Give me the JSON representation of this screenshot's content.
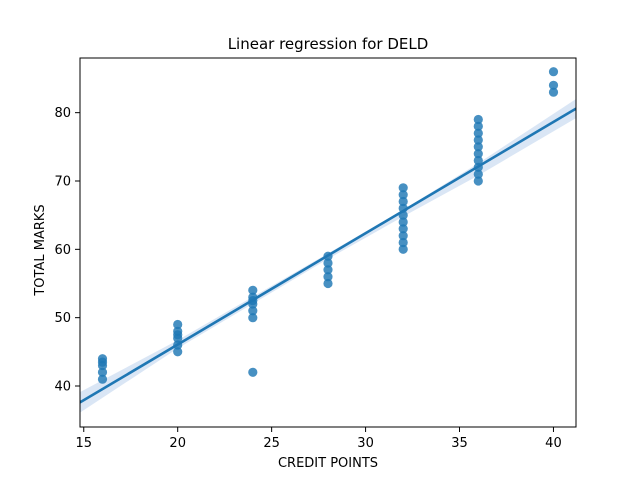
{
  "chart_data": {
    "type": "scatter",
    "title": "Linear regression for DELD",
    "xlabel": "CREDIT POINTS",
    "ylabel": "TOTAL MARKS",
    "xlim": [
      14.8,
      41.2
    ],
    "ylim": [
      34,
      88
    ],
    "xticks": [
      15,
      20,
      25,
      30,
      35,
      40
    ],
    "yticks": [
      40,
      50,
      60,
      70,
      80
    ],
    "grid": false,
    "point_color": "#1f77b4",
    "line_color": "#1f77b4",
    "band_color": "#aec7e8",
    "points": [
      {
        "x": 16,
        "y": 41
      },
      {
        "x": 16,
        "y": 42
      },
      {
        "x": 16,
        "y": 43
      },
      {
        "x": 16,
        "y": 43.5
      },
      {
        "x": 16,
        "y": 44
      },
      {
        "x": 20,
        "y": 45
      },
      {
        "x": 20,
        "y": 46
      },
      {
        "x": 20,
        "y": 47
      },
      {
        "x": 20,
        "y": 47.5
      },
      {
        "x": 20,
        "y": 48
      },
      {
        "x": 20,
        "y": 49
      },
      {
        "x": 24,
        "y": 42
      },
      {
        "x": 24,
        "y": 50
      },
      {
        "x": 24,
        "y": 51
      },
      {
        "x": 24,
        "y": 52
      },
      {
        "x": 24,
        "y": 52.5
      },
      {
        "x": 24,
        "y": 53
      },
      {
        "x": 24,
        "y": 54
      },
      {
        "x": 28,
        "y": 55
      },
      {
        "x": 28,
        "y": 56
      },
      {
        "x": 28,
        "y": 57
      },
      {
        "x": 28,
        "y": 58
      },
      {
        "x": 28,
        "y": 59
      },
      {
        "x": 32,
        "y": 60
      },
      {
        "x": 32,
        "y": 61
      },
      {
        "x": 32,
        "y": 62
      },
      {
        "x": 32,
        "y": 63
      },
      {
        "x": 32,
        "y": 64
      },
      {
        "x": 32,
        "y": 65
      },
      {
        "x": 32,
        "y": 66
      },
      {
        "x": 32,
        "y": 67
      },
      {
        "x": 32,
        "y": 68
      },
      {
        "x": 32,
        "y": 69
      },
      {
        "x": 36,
        "y": 70
      },
      {
        "x": 36,
        "y": 71
      },
      {
        "x": 36,
        "y": 72
      },
      {
        "x": 36,
        "y": 73
      },
      {
        "x": 36,
        "y": 74
      },
      {
        "x": 36,
        "y": 75
      },
      {
        "x": 36,
        "y": 76
      },
      {
        "x": 36,
        "y": 77
      },
      {
        "x": 36,
        "y": 78
      },
      {
        "x": 36,
        "y": 79
      },
      {
        "x": 40,
        "y": 83
      },
      {
        "x": 40,
        "y": 84
      },
      {
        "x": 40,
        "y": 86
      }
    ],
    "regression_line": {
      "x": [
        14.8,
        41.2
      ],
      "y": [
        37.6,
        80.6
      ]
    },
    "confidence_band": {
      "x": [
        14.8,
        20,
        28,
        32,
        36,
        41.2
      ],
      "upper": [
        39.1,
        46.7,
        59.4,
        65.8,
        72.6,
        82.0
      ],
      "lower": [
        36.1,
        45.5,
        58.6,
        64.8,
        70.8,
        79.2
      ]
    }
  }
}
